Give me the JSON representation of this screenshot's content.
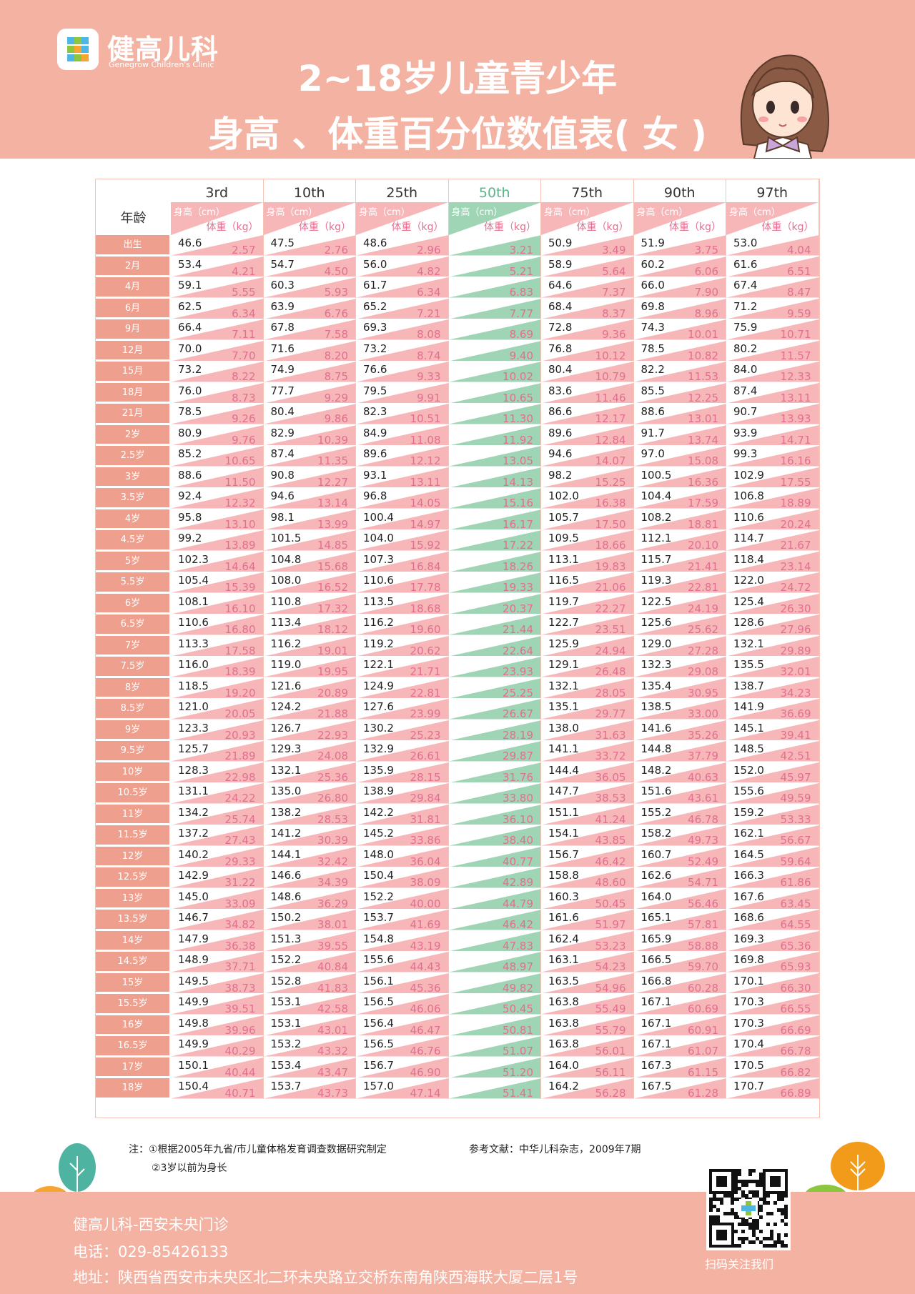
{
  "brand": {
    "name_cn": "健高儿科",
    "name_en": "Genegrow Children's Clinic"
  },
  "title": {
    "line1": "2~18岁儿童青少年",
    "line2": "身高 、体重百分位数值表( 女 )"
  },
  "table": {
    "age_header": "年龄",
    "height_label": "身高（cm）",
    "weight_label": "体重（kg）",
    "percentiles": [
      "3rd",
      "10th",
      "25th",
      "50th",
      "75th",
      "90th",
      "97th"
    ],
    "highlight_index": 3,
    "ages": [
      "出生",
      "2月",
      "4月",
      "6月",
      "9月",
      "12月",
      "15月",
      "18月",
      "21月",
      "2岁",
      "2.5岁",
      "3岁",
      "3.5岁",
      "4岁",
      "4.5岁",
      "5岁",
      "5.5岁",
      "6岁",
      "6.5岁",
      "7岁",
      "7.5岁",
      "8岁",
      "8.5岁",
      "9岁",
      "9.5岁",
      "10岁",
      "10.5岁",
      "11岁",
      "11.5岁",
      "12岁",
      "12.5岁",
      "13岁",
      "13.5岁",
      "14岁",
      "14.5岁",
      "15岁",
      "15.5岁",
      "16岁",
      "16.5岁",
      "17岁",
      "18岁"
    ],
    "height": [
      [
        "46.6",
        "47.5",
        "48.6",
        "49.7",
        "50.9",
        "51.9",
        "53.0"
      ],
      [
        "53.4",
        "54.7",
        "56.0",
        "57.4",
        "58.9",
        "60.2",
        "61.6"
      ],
      [
        "59.1",
        "60.3",
        "61.7",
        "63.1",
        "64.6",
        "66.0",
        "67.4"
      ],
      [
        "62.5",
        "63.9",
        "65.2",
        "66.8",
        "68.4",
        "69.8",
        "71.2"
      ],
      [
        "66.4",
        "67.8",
        "69.3",
        "71.0",
        "72.8",
        "74.3",
        "75.9"
      ],
      [
        "70.0",
        "71.6",
        "73.2",
        "75.0",
        "76.8",
        "78.5",
        "80.2"
      ],
      [
        "73.2",
        "74.9",
        "76.6",
        "78.5",
        "80.4",
        "82.2",
        "84.0"
      ],
      [
        "76.0",
        "77.7",
        "79.5",
        "81.5",
        "83.6",
        "85.5",
        "87.4"
      ],
      [
        "78.5",
        "80.4",
        "82.3",
        "84.4",
        "86.6",
        "88.6",
        "90.7"
      ],
      [
        "80.9",
        "82.9",
        "84.9",
        "87.2",
        "89.6",
        "91.7",
        "93.9"
      ],
      [
        "85.2",
        "87.4",
        "89.6",
        "92.1",
        "94.6",
        "97.0",
        "99.3"
      ],
      [
        "88.6",
        "90.8",
        "93.1",
        "95.6",
        "98.2",
        "100.5",
        "102.9"
      ],
      [
        "92.4",
        "94.6",
        "96.8",
        "99.4",
        "102.0",
        "104.4",
        "106.8"
      ],
      [
        "95.8",
        "98.1",
        "100.4",
        "103.1",
        "105.7",
        "108.2",
        "110.6"
      ],
      [
        "99.2",
        "101.5",
        "104.0",
        "106.7",
        "109.5",
        "112.1",
        "114.7"
      ],
      [
        "102.3",
        "104.8",
        "107.3",
        "110.2",
        "113.1",
        "115.7",
        "118.4"
      ],
      [
        "105.4",
        "108.0",
        "110.6",
        "113.5",
        "116.5",
        "119.3",
        "122.0"
      ],
      [
        "108.1",
        "110.8",
        "113.5",
        "116.6",
        "119.7",
        "122.5",
        "125.4"
      ],
      [
        "110.6",
        "113.4",
        "116.2",
        "119.4",
        "122.7",
        "125.6",
        "128.6"
      ],
      [
        "113.3",
        "116.2",
        "119.2",
        "122.5",
        "125.9",
        "129.0",
        "132.1"
      ],
      [
        "116.0",
        "119.0",
        "122.1",
        "125.6",
        "129.1",
        "132.3",
        "135.5"
      ],
      [
        "118.5",
        "121.6",
        "124.9",
        "128.5",
        "132.1",
        "135.4",
        "138.7"
      ],
      [
        "121.0",
        "124.2",
        "127.6",
        "131.3",
        "135.1",
        "138.5",
        "141.9"
      ],
      [
        "123.3",
        "126.7",
        "130.2",
        "134.1",
        "138.0",
        "141.6",
        "145.1"
      ],
      [
        "125.7",
        "129.3",
        "132.9",
        "137.0",
        "141.1",
        "144.8",
        "148.5"
      ],
      [
        "128.3",
        "132.1",
        "135.9",
        "140.1",
        "144.4",
        "148.2",
        "152.0"
      ],
      [
        "131.1",
        "135.0",
        "138.9",
        "143.3",
        "147.7",
        "151.6",
        "155.6"
      ],
      [
        "134.2",
        "138.2",
        "142.2",
        "146.6",
        "151.1",
        "155.2",
        "159.2"
      ],
      [
        "137.2",
        "141.2",
        "145.2",
        "149.7",
        "154.1",
        "158.2",
        "162.1"
      ],
      [
        "140.2",
        "144.1",
        "148.0",
        "152.4",
        "156.7",
        "160.7",
        "164.5"
      ],
      [
        "142.9",
        "146.6",
        "150.4",
        "154.6",
        "158.8",
        "162.6",
        "166.3"
      ],
      [
        "145.0",
        "148.6",
        "152.2",
        "156.3",
        "160.3",
        "164.0",
        "167.6"
      ],
      [
        "146.7",
        "150.2",
        "153.7",
        "157.6",
        "161.6",
        "165.1",
        "168.6"
      ],
      [
        "147.9",
        "151.3",
        "154.8",
        "158.6",
        "162.4",
        "165.9",
        "169.3"
      ],
      [
        "148.9",
        "152.2",
        "155.6",
        "159.4",
        "163.1",
        "166.5",
        "169.8"
      ],
      [
        "149.5",
        "152.8",
        "156.1",
        "159.8",
        "163.5",
        "166.8",
        "170.1"
      ],
      [
        "149.9",
        "153.1",
        "156.5",
        "160.1",
        "163.8",
        "167.1",
        "170.3"
      ],
      [
        "149.8",
        "153.1",
        "156.4",
        "160.1",
        "163.8",
        "167.1",
        "170.3"
      ],
      [
        "149.9",
        "153.2",
        "156.5",
        "160.2",
        "163.8",
        "167.1",
        "170.4"
      ],
      [
        "150.1",
        "153.4",
        "156.7",
        "160.3",
        "164.0",
        "167.3",
        "170.5"
      ],
      [
        "150.4",
        "153.7",
        "157.0",
        "160.6",
        "164.2",
        "167.5",
        "170.7"
      ]
    ],
    "weight": [
      [
        "2.57",
        "2.76",
        "2.96",
        "3.21",
        "3.49",
        "3.75",
        "4.04"
      ],
      [
        "4.21",
        "4.50",
        "4.82",
        "5.21",
        "5.64",
        "6.06",
        "6.51"
      ],
      [
        "5.55",
        "5.93",
        "6.34",
        "6.83",
        "7.37",
        "7.90",
        "8.47"
      ],
      [
        "6.34",
        "6.76",
        "7.21",
        "7.77",
        "8.37",
        "8.96",
        "9.59"
      ],
      [
        "7.11",
        "7.58",
        "8.08",
        "8.69",
        "9.36",
        "10.01",
        "10.71"
      ],
      [
        "7.70",
        "8.20",
        "8.74",
        "9.40",
        "10.12",
        "10.82",
        "11.57"
      ],
      [
        "8.22",
        "8.75",
        "9.33",
        "10.02",
        "10.79",
        "11.53",
        "12.33"
      ],
      [
        "8.73",
        "9.29",
        "9.91",
        "10.65",
        "11.46",
        "12.25",
        "13.11"
      ],
      [
        "9.26",
        "9.86",
        "10.51",
        "11.30",
        "12.17",
        "13.01",
        "13.93"
      ],
      [
        "9.76",
        "10.39",
        "11.08",
        "11.92",
        "12.84",
        "13.74",
        "14.71"
      ],
      [
        "10.65",
        "11.35",
        "12.12",
        "13.05",
        "14.07",
        "15.08",
        "16.16"
      ],
      [
        "11.50",
        "12.27",
        "13.11",
        "14.13",
        "15.25",
        "16.36",
        "17.55"
      ],
      [
        "12.32",
        "13.14",
        "14.05",
        "15.16",
        "16.38",
        "17.59",
        "18.89"
      ],
      [
        "13.10",
        "13.99",
        "14.97",
        "16.17",
        "17.50",
        "18.81",
        "20.24"
      ],
      [
        "13.89",
        "14.85",
        "15.92",
        "17.22",
        "18.66",
        "20.10",
        "21.67"
      ],
      [
        "14.64",
        "15.68",
        "16.84",
        "18.26",
        "19.83",
        "21.41",
        "23.14"
      ],
      [
        "15.39",
        "16.52",
        "17.78",
        "19.33",
        "21.06",
        "22.81",
        "24.72"
      ],
      [
        "16.10",
        "17.32",
        "18.68",
        "20.37",
        "22.27",
        "24.19",
        "26.30"
      ],
      [
        "16.80",
        "18.12",
        "19.60",
        "21.44",
        "23.51",
        "25.62",
        "27.96"
      ],
      [
        "17.58",
        "19.01",
        "20.62",
        "22.64",
        "24.94",
        "27.28",
        "29.89"
      ],
      [
        "18.39",
        "19.95",
        "21.71",
        "23.93",
        "26.48",
        "29.08",
        "32.01"
      ],
      [
        "19.20",
        "20.89",
        "22.81",
        "25.25",
        "28.05",
        "30.95",
        "34.23"
      ],
      [
        "20.05",
        "21.88",
        "23.99",
        "26.67",
        "29.77",
        "33.00",
        "36.69"
      ],
      [
        "20.93",
        "22.93",
        "25.23",
        "28.19",
        "31.63",
        "35.26",
        "39.41"
      ],
      [
        "21.89",
        "24.08",
        "26.61",
        "29.87",
        "33.72",
        "37.79",
        "42.51"
      ],
      [
        "22.98",
        "25.36",
        "28.15",
        "31.76",
        "36.05",
        "40.63",
        "45.97"
      ],
      [
        "24.22",
        "26.80",
        "29.84",
        "33.80",
        "38.53",
        "43.61",
        "49.59"
      ],
      [
        "25.74",
        "28.53",
        "31.81",
        "36.10",
        "41.24",
        "46.78",
        "53.33"
      ],
      [
        "27.43",
        "30.39",
        "33.86",
        "38.40",
        "43.85",
        "49.73",
        "56.67"
      ],
      [
        "29.33",
        "32.42",
        "36.04",
        "40.77",
        "46.42",
        "52.49",
        "59.64"
      ],
      [
        "31.22",
        "34.39",
        "38.09",
        "42.89",
        "48.60",
        "54.71",
        "61.86"
      ],
      [
        "33.09",
        "36.29",
        "40.00",
        "44.79",
        "50.45",
        "56.46",
        "63.45"
      ],
      [
        "34.82",
        "38.01",
        "41.69",
        "46.42",
        "51.97",
        "57.81",
        "64.55"
      ],
      [
        "36.38",
        "39.55",
        "43.19",
        "47.83",
        "53.23",
        "58.88",
        "65.36"
      ],
      [
        "37.71",
        "40.84",
        "44.43",
        "48.97",
        "54.23",
        "59.70",
        "65.93"
      ],
      [
        "38.73",
        "41.83",
        "45.36",
        "49.82",
        "54.96",
        "60.28",
        "66.30"
      ],
      [
        "39.51",
        "42.58",
        "46.06",
        "50.45",
        "55.49",
        "60.69",
        "66.55"
      ],
      [
        "39.96",
        "43.01",
        "46.47",
        "50.81",
        "55.79",
        "60.91",
        "66.69"
      ],
      [
        "40.29",
        "43.32",
        "46.76",
        "51.07",
        "56.01",
        "61.07",
        "66.78"
      ],
      [
        "40.44",
        "43.47",
        "46.90",
        "51.20",
        "56.11",
        "61.15",
        "66.82"
      ],
      [
        "40.71",
        "43.73",
        "47.14",
        "51.41",
        "56.28",
        "61.28",
        "66.89"
      ]
    ]
  },
  "notes": {
    "note_prefix": "注：",
    "note1": "①根据2005年九省/市儿童体格发育调查数据研究制定",
    "reference": "参考文献：中华儿科杂志，2009年7期",
    "note2": "②3岁以前为身长"
  },
  "footer": {
    "clinic": "健高儿科-西安未央门诊",
    "phone": "电话：029-85426133",
    "address": "地址：陕西省西安市未央区北二环未央路立交桥东南角陕西海联大厦二层1号",
    "qr_label": "扫码关注我们"
  },
  "colors": {
    "header_bg": "#f4b2a2",
    "pink_band": "#f7b7b9",
    "green_band": "#9fd4b5",
    "age_bg": "#ef9f8d",
    "weight_text": "#e26f8f",
    "highlight_header": "#5cb58a"
  },
  "icons": [
    "plus-logo-icon",
    "girl-illustration",
    "qr-code",
    "tree-icon"
  ]
}
